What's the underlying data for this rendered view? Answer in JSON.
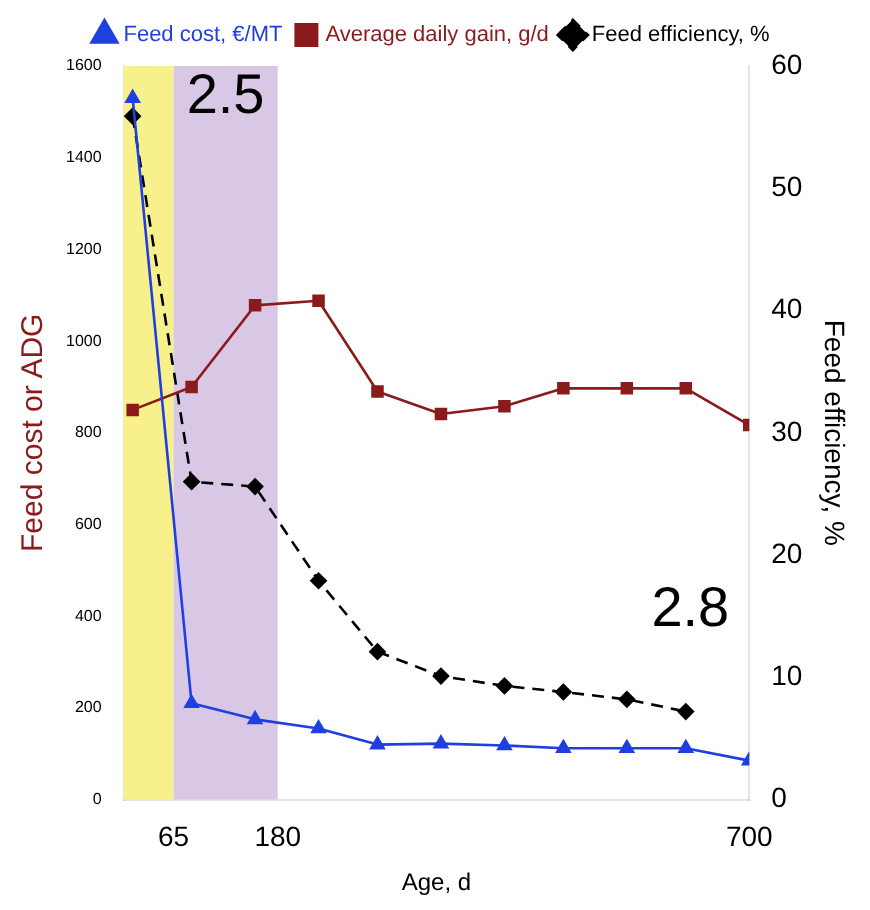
{
  "chart_data": {
    "type": "line",
    "xlabel": "Age, d",
    "ylabel": "Feed cost or ADG",
    "y2label": "Feed efficiency, %",
    "xlim": [
      10,
      700
    ],
    "xticks": [
      65,
      180,
      700
    ],
    "ylim": [
      0,
      1600
    ],
    "yticks": [
      0,
      200,
      400,
      600,
      800,
      1000,
      1200,
      1400,
      1600
    ],
    "y2lim": [
      0,
      60
    ],
    "y2ticks": [
      0,
      10,
      20,
      30,
      40,
      50,
      60
    ],
    "x": [
      20,
      85,
      155,
      225,
      290,
      360,
      430,
      495,
      565,
      630,
      700
    ],
    "series": [
      {
        "name": "Feed cost, €/MT",
        "color": "#1f3fe0",
        "marker": "triangle",
        "values": [
          1530,
          210,
          175,
          155,
          120,
          122,
          118,
          112,
          112,
          112,
          85
        ]
      },
      {
        "name": "Average daily gain, g/d",
        "color": "#8b1a1a",
        "marker": "square",
        "values": [
          850,
          900,
          1078,
          1088,
          890,
          841,
          858,
          897,
          897,
          897,
          817
        ]
      },
      {
        "name": "Feed efficiency, %",
        "color": "#000000",
        "marker": "diamond",
        "line_style": "dashed",
        "axis": "y2",
        "values": [
          55.9,
          26,
          25.6,
          17.9,
          12.1,
          10.1,
          9.3,
          8.8,
          8.2,
          7.2,
          null
        ]
      }
    ],
    "bands": [
      {
        "axis": "x",
        "from": 10,
        "to": 65,
        "color": "#f8f08a"
      },
      {
        "axis": "x",
        "from": 65,
        "to": 180,
        "color": "#d8c8e6",
        "label": "2.5"
      }
    ],
    "annotations": [
      "2.8"
    ],
    "legend": "top",
    "grid": false
  }
}
